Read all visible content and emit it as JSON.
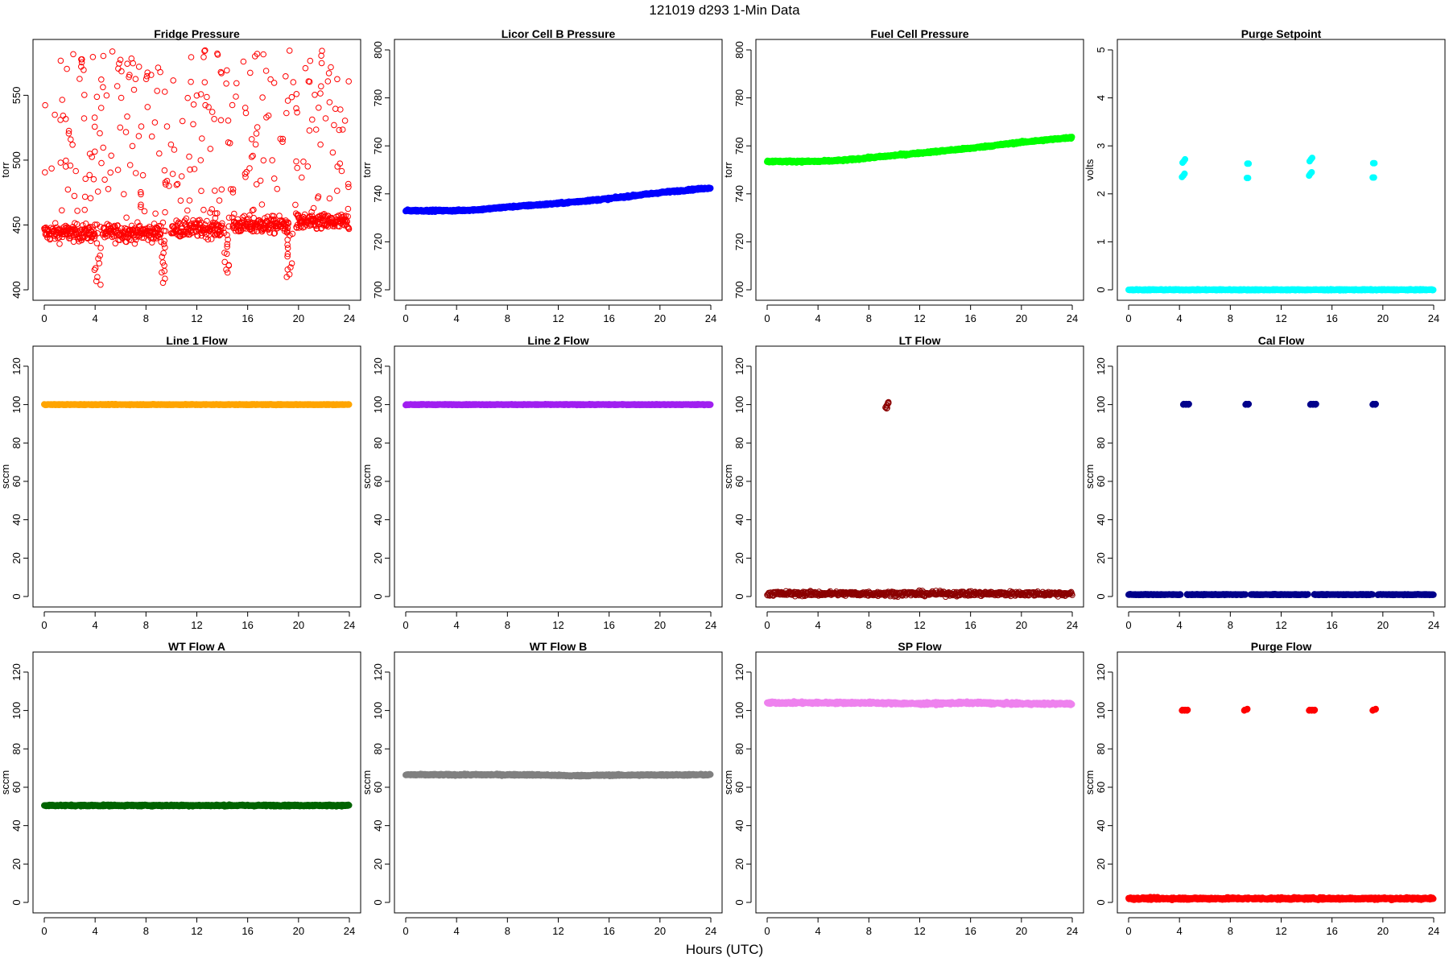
{
  "title": "121019    d293    1-Min Data",
  "xlabel": "Hours (UTC)",
  "chart_data": [
    {
      "type": "scatter",
      "title": "Fridge Pressure",
      "ylabel": "torr",
      "color": "#ff0000",
      "marker": "open",
      "xlim": [
        0,
        24
      ],
      "ylim": [
        400,
        585
      ],
      "xticks": [
        0,
        4,
        8,
        12,
        16,
        20,
        24
      ],
      "yticks": [
        400,
        450,
        500,
        550
      ],
      "series": [
        {
          "kind": "noisy_baseline",
          "segments": [
            [
              0,
              4,
              444
            ],
            [
              4.6,
              9.2,
              444
            ],
            [
              10,
              14,
              447
            ],
            [
              14.8,
              19.2,
              450
            ],
            [
              19.8,
              24,
              452
            ]
          ],
          "noise": 7,
          "dips": [
            [
              4.2,
              404
            ],
            [
              9.4,
              405
            ],
            [
              14.3,
              412
            ],
            [
              19.3,
              410
            ]
          ],
          "outlier_range": [
            455,
            585
          ],
          "outlier_count": 260
        }
      ]
    },
    {
      "type": "scatter",
      "title": "Licor Cell B Pressure",
      "ylabel": "torr",
      "color": "#0000ff",
      "marker": "filled",
      "xlim": [
        0,
        24
      ],
      "ylim": [
        700,
        800
      ],
      "xticks": [
        0,
        4,
        8,
        12,
        16,
        20,
        24
      ],
      "yticks": [
        700,
        720,
        740,
        760,
        780,
        800
      ],
      "series": [
        {
          "kind": "curve",
          "points": [
            [
              0,
              733
            ],
            [
              4,
              733
            ],
            [
              6,
              733.5
            ],
            [
              8,
              734.5
            ],
            [
              12,
              736
            ],
            [
              16,
              738
            ],
            [
              20,
              740.5
            ],
            [
              24,
              742.5
            ]
          ],
          "noise": 0.4
        }
      ]
    },
    {
      "type": "scatter",
      "title": "Fuel Cell Pressure",
      "ylabel": "torr",
      "color": "#00ff00",
      "marker": "filled",
      "xlim": [
        0,
        24
      ],
      "ylim": [
        700,
        800
      ],
      "xticks": [
        0,
        4,
        8,
        12,
        16,
        20,
        24
      ],
      "yticks": [
        700,
        720,
        740,
        760,
        780,
        800
      ],
      "series": [
        {
          "kind": "curve",
          "points": [
            [
              0,
              753.5
            ],
            [
              4,
              753.5
            ],
            [
              6,
              754
            ],
            [
              8,
              755
            ],
            [
              12,
              757
            ],
            [
              16,
              759
            ],
            [
              20,
              761.5
            ],
            [
              24,
              763.5
            ]
          ],
          "noise": 0.4
        }
      ]
    },
    {
      "type": "scatter",
      "title": "Purge Setpoint",
      "ylabel": "volts",
      "color": "#00ffff",
      "marker": "filled",
      "xlim": [
        0,
        24
      ],
      "ylim": [
        0,
        5
      ],
      "xticks": [
        0,
        4,
        8,
        12,
        16,
        20,
        24
      ],
      "yticks": [
        0,
        1,
        2,
        3,
        4,
        5
      ],
      "series": [
        {
          "kind": "curve",
          "points": [
            [
              0,
              0
            ],
            [
              24,
              0
            ]
          ],
          "noise": 0.01
        },
        {
          "kind": "clusters",
          "points": [
            [
              4.2,
              2.35
            ],
            [
              4.3,
              2.38
            ],
            [
              4.4,
              2.42
            ],
            [
              9.3,
              2.33
            ],
            [
              9.4,
              2.33
            ],
            [
              14.2,
              2.38
            ],
            [
              14.3,
              2.42
            ],
            [
              14.4,
              2.45
            ],
            [
              19.2,
              2.34
            ],
            [
              19.3,
              2.34
            ]
          ]
        }
      ]
    },
    {
      "type": "scatter",
      "title": "Line 1 Flow",
      "ylabel": "sccm",
      "color": "#ffa500",
      "marker": "filled",
      "xlim": [
        0,
        24
      ],
      "ylim": [
        0,
        125
      ],
      "xticks": [
        0,
        4,
        8,
        12,
        16,
        20,
        24
      ],
      "yticks": [
        0,
        20,
        40,
        60,
        80,
        100,
        120
      ],
      "series": [
        {
          "kind": "curve",
          "points": [
            [
              0,
              100
            ],
            [
              24,
              100
            ]
          ],
          "noise": 0.2
        }
      ]
    },
    {
      "type": "scatter",
      "title": "Line 2 Flow",
      "ylabel": "sccm",
      "color": "#a020f0",
      "marker": "filled",
      "xlim": [
        0,
        24
      ],
      "ylim": [
        0,
        125
      ],
      "xticks": [
        0,
        4,
        8,
        12,
        16,
        20,
        24
      ],
      "yticks": [
        0,
        20,
        40,
        60,
        80,
        100,
        120
      ],
      "series": [
        {
          "kind": "curve",
          "points": [
            [
              0,
              100
            ],
            [
              24,
              100
            ]
          ],
          "noise": 0.2
        }
      ]
    },
    {
      "type": "scatter",
      "title": "LT Flow",
      "ylabel": "sccm",
      "color": "#8b0000",
      "marker": "open",
      "xlim": [
        0,
        24
      ],
      "ylim": [
        0,
        125
      ],
      "xticks": [
        0,
        4,
        8,
        12,
        16,
        20,
        24
      ],
      "yticks": [
        0,
        20,
        40,
        60,
        80,
        100,
        120
      ],
      "series": [
        {
          "kind": "curve",
          "points": [
            [
              0,
              1.5
            ],
            [
              24,
              1.5
            ]
          ],
          "noise": 1.3
        },
        {
          "kind": "clusters",
          "points": [
            [
              9.3,
              98.5
            ],
            [
              9.4,
              99.5
            ],
            [
              9.5,
              100.5
            ],
            [
              9.4,
              98
            ],
            [
              9.5,
              101
            ]
          ]
        }
      ]
    },
    {
      "type": "scatter",
      "title": "Cal Flow",
      "ylabel": "sccm",
      "color": "#00008b",
      "marker": "filled",
      "xlim": [
        0,
        24
      ],
      "ylim": [
        0,
        125
      ],
      "xticks": [
        0,
        4,
        8,
        12,
        16,
        20,
        24
      ],
      "yticks": [
        0,
        20,
        40,
        60,
        80,
        100,
        120
      ],
      "series": [
        {
          "kind": "segments",
          "segments": [
            [
              0,
              4.1,
              1
            ],
            [
              4.6,
              9.2,
              1
            ],
            [
              9.6,
              14.1,
              1
            ],
            [
              14.6,
              19.2,
              1
            ],
            [
              19.6,
              24,
              1
            ]
          ],
          "noise": 0.2
        },
        {
          "kind": "clusters",
          "points": [
            [
              4.3,
              100
            ],
            [
              4.5,
              100
            ],
            [
              4.7,
              100
            ],
            [
              9.2,
              100
            ],
            [
              9.4,
              100
            ],
            [
              14.3,
              100
            ],
            [
              14.5,
              100
            ],
            [
              14.7,
              100
            ],
            [
              19.2,
              100
            ],
            [
              19.4,
              100
            ]
          ]
        }
      ]
    },
    {
      "type": "scatter",
      "title": "WT Flow A",
      "ylabel": "sccm",
      "color": "#006400",
      "marker": "filled",
      "xlim": [
        0,
        24
      ],
      "ylim": [
        0,
        125
      ],
      "xticks": [
        0,
        4,
        8,
        12,
        16,
        20,
        24
      ],
      "yticks": [
        0,
        20,
        40,
        60,
        80,
        100,
        120
      ],
      "series": [
        {
          "kind": "curve",
          "points": [
            [
              0,
              50.5
            ],
            [
              24,
              50.5
            ]
          ],
          "noise": 0.4
        }
      ]
    },
    {
      "type": "scatter",
      "title": "WT Flow B",
      "ylabel": "sccm",
      "color": "#808080",
      "marker": "filled",
      "xlim": [
        0,
        24
      ],
      "ylim": [
        0,
        125
      ],
      "xticks": [
        0,
        4,
        8,
        12,
        16,
        20,
        24
      ],
      "yticks": [
        0,
        20,
        40,
        60,
        80,
        100,
        120
      ],
      "series": [
        {
          "kind": "curve",
          "points": [
            [
              0,
              66.5
            ],
            [
              10,
              66.5
            ],
            [
              13,
              66
            ],
            [
              16,
              66.3
            ],
            [
              24,
              66.5
            ]
          ],
          "noise": 0.4
        }
      ]
    },
    {
      "type": "scatter",
      "title": "SP Flow",
      "ylabel": "sccm",
      "color": "#ee82ee",
      "marker": "filled",
      "xlim": [
        0,
        24
      ],
      "ylim": [
        0,
        125
      ],
      "xticks": [
        0,
        4,
        8,
        12,
        16,
        20,
        24
      ],
      "yticks": [
        0,
        20,
        40,
        60,
        80,
        100,
        120
      ],
      "series": [
        {
          "kind": "curve",
          "points": [
            [
              0,
              104
            ],
            [
              8,
              104
            ],
            [
              12,
              103.5
            ],
            [
              16,
              104
            ],
            [
              20,
              103.5
            ],
            [
              24,
              103.5
            ]
          ],
          "noise": 0.6
        }
      ]
    },
    {
      "type": "scatter",
      "title": "Purge Flow",
      "ylabel": "sccm",
      "color": "#ff0000",
      "marker": "filled",
      "xlim": [
        0,
        24
      ],
      "ylim": [
        0,
        125
      ],
      "xticks": [
        0,
        4,
        8,
        12,
        16,
        20,
        24
      ],
      "yticks": [
        0,
        20,
        40,
        60,
        80,
        100,
        120
      ],
      "series": [
        {
          "kind": "curve",
          "points": [
            [
              0,
              2
            ],
            [
              24,
              2
            ]
          ],
          "noise": 0.6
        },
        {
          "kind": "clusters",
          "points": [
            [
              4.2,
              100
            ],
            [
              4.4,
              100
            ],
            [
              4.6,
              100
            ],
            [
              9.1,
              100
            ],
            [
              9.3,
              100.5
            ],
            [
              14.2,
              100
            ],
            [
              14.4,
              100
            ],
            [
              14.6,
              100
            ],
            [
              19.2,
              100
            ],
            [
              19.4,
              100.5
            ]
          ]
        }
      ]
    }
  ]
}
